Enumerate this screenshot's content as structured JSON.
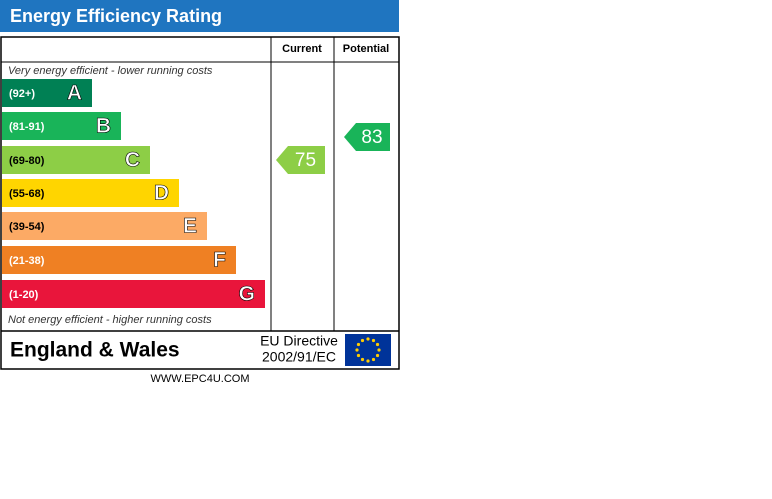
{
  "header": {
    "title": "Energy Efficiency Rating"
  },
  "columns": [
    "Current",
    "Potential"
  ],
  "top_note": "Very energy efficient - lower running costs",
  "bottom_note": "Not energy efficient - higher running costs",
  "bands": [
    {
      "range": "(92+)",
      "letter": "A",
      "color": "#008054"
    },
    {
      "range": "(81-91)",
      "letter": "B",
      "color": "#19b459"
    },
    {
      "range": "(69-80)",
      "letter": "C",
      "color": "#8dce46"
    },
    {
      "range": "(55-68)",
      "letter": "D",
      "color": "#ffd500"
    },
    {
      "range": "(39-54)",
      "letter": "E",
      "color": "#fcaa65"
    },
    {
      "range": "(21-38)",
      "letter": "F",
      "color": "#ef8023"
    },
    {
      "range": "(1-20)",
      "letter": "G",
      "color": "#e9153b"
    }
  ],
  "current": {
    "value": 75,
    "color": "#8dce46"
  },
  "potential": {
    "value": 83,
    "color": "#19b459"
  },
  "footer": {
    "region": "England & Wales",
    "directive_line1": "EU Directive",
    "directive_line2": "2002/91/EC"
  },
  "website": "WWW.EPC4U.COM"
}
